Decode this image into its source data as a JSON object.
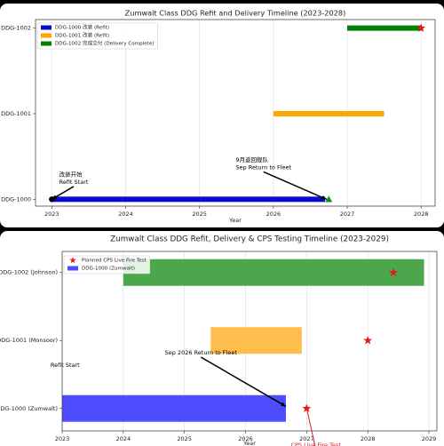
{
  "chart_data": [
    {
      "type": "gantt",
      "title": "Zumwalt Class DDG Refit and Delivery Timeline (2023-2028)",
      "x_label": "Year",
      "xlim": [
        2022.78,
        2028.19
      ],
      "xticks": [
        2023,
        2024,
        2025,
        2026,
        2027,
        2028
      ],
      "ylim": [
        -0.08,
        2.1
      ],
      "yticks": [
        {
          "value": 0,
          "label": "DDG-1000"
        },
        {
          "value": 1,
          "label": "DDG-1001"
        },
        {
          "value": 2,
          "label": "DDG-1002"
        }
      ],
      "grid": "x",
      "legend": "upper left",
      "bars": [
        {
          "name": "DDG-1000 改装 (Refit)",
          "color": "#0b0bd4",
          "y": 0,
          "start": 2023,
          "end": 2026.7
        },
        {
          "name": "DDG-1001 改装 (Refit)",
          "color": "#ffa500",
          "y": 1,
          "start": 2026,
          "end": 2027.5
        },
        {
          "name": "DDG-1002 完成交付 (Delivery Complete)",
          "color": "#008000",
          "y": 2,
          "start": 2027,
          "end": 2028
        }
      ],
      "points": [
        {
          "color": "#000000",
          "shape": "circle",
          "x": [
            2023
          ],
          "y": [
            0
          ]
        },
        {
          "color": "#1a8a1a",
          "shape": "triangle",
          "x": [
            2026.75
          ],
          "y": [
            0
          ]
        },
        {
          "color": "#e41a1c",
          "shape": "star",
          "x": [
            2028
          ],
          "y": [
            2
          ]
        }
      ],
      "annotations": [
        {
          "text": [
            "改装开始",
            "Refit Start"
          ],
          "xy": [
            2023,
            0
          ],
          "xytext": [
            2023.1,
            0.29
          ],
          "color": "#000000",
          "arrowstyle": "->"
        },
        {
          "text": [
            "9月返回舰队",
            "Sep Return to Fleet"
          ],
          "xy": [
            2026.72,
            0
          ],
          "xytext": [
            2025.49,
            0.46
          ],
          "color": "#000000",
          "arrowstyle": "->"
        }
      ]
    },
    {
      "type": "gantt",
      "title": "Zumwalt Class DDG Refit, Delivery & CPS Testing Timeline (2023-2029)",
      "x_label": "Year",
      "xlim": [
        2023,
        2029.13
      ],
      "xticks": [
        2023,
        2024,
        2025,
        2026,
        2027,
        2028,
        2029
      ],
      "ylim": [
        -0.33,
        2.31
      ],
      "yticks": [
        {
          "value": 0,
          "label": "DDG-1000 (Zumwalt)"
        },
        {
          "value": 1,
          "label": "DDG-1001 (Monsoor)"
        },
        {
          "value": 2,
          "label": "DDG-1002 (Johnson)"
        }
      ],
      "grid": "x",
      "legend": "upper left",
      "bars": [
        {
          "name": "DDG-1000 (Zumwalt)",
          "color": "#4d4dff",
          "y": 0,
          "start": 2023,
          "end": 2026.66
        },
        {
          "color": "#ffbe4d",
          "y": 1,
          "start": 2025.43,
          "end": 2026.92
        },
        {
          "color": "#4ca64c",
          "y": 2,
          "start": 2024,
          "end": 2028.92
        }
      ],
      "points": [
        {
          "name": "Planned CPS Live Fire Test",
          "color": "#e41a1c",
          "shape": "star",
          "x": [
            2027,
            2028,
            2028.42
          ],
          "y": [
            0,
            1,
            2
          ]
        }
      ],
      "annotations": [
        {
          "text": [
            "Sep 2026 Return to Fleet"
          ],
          "xy": [
            2026.66,
            0.03
          ],
          "xytext": [
            2024.68,
            0.82
          ],
          "color": "#000000",
          "arrowstyle": "->"
        },
        {
          "text": [
            "Refit Start"
          ],
          "xy": [
            2023,
            0
          ],
          "xytext": [
            2022.81,
            0.64
          ],
          "color": "#000000",
          "arrowstyle": null
        },
        {
          "text": [
            "CPS Live Fire Test"
          ],
          "xy": [
            2027,
            0
          ],
          "xytext": [
            2026.74,
            -0.54
          ],
          "color": "#e41a1c",
          "arrowstyle": "-"
        }
      ]
    }
  ]
}
